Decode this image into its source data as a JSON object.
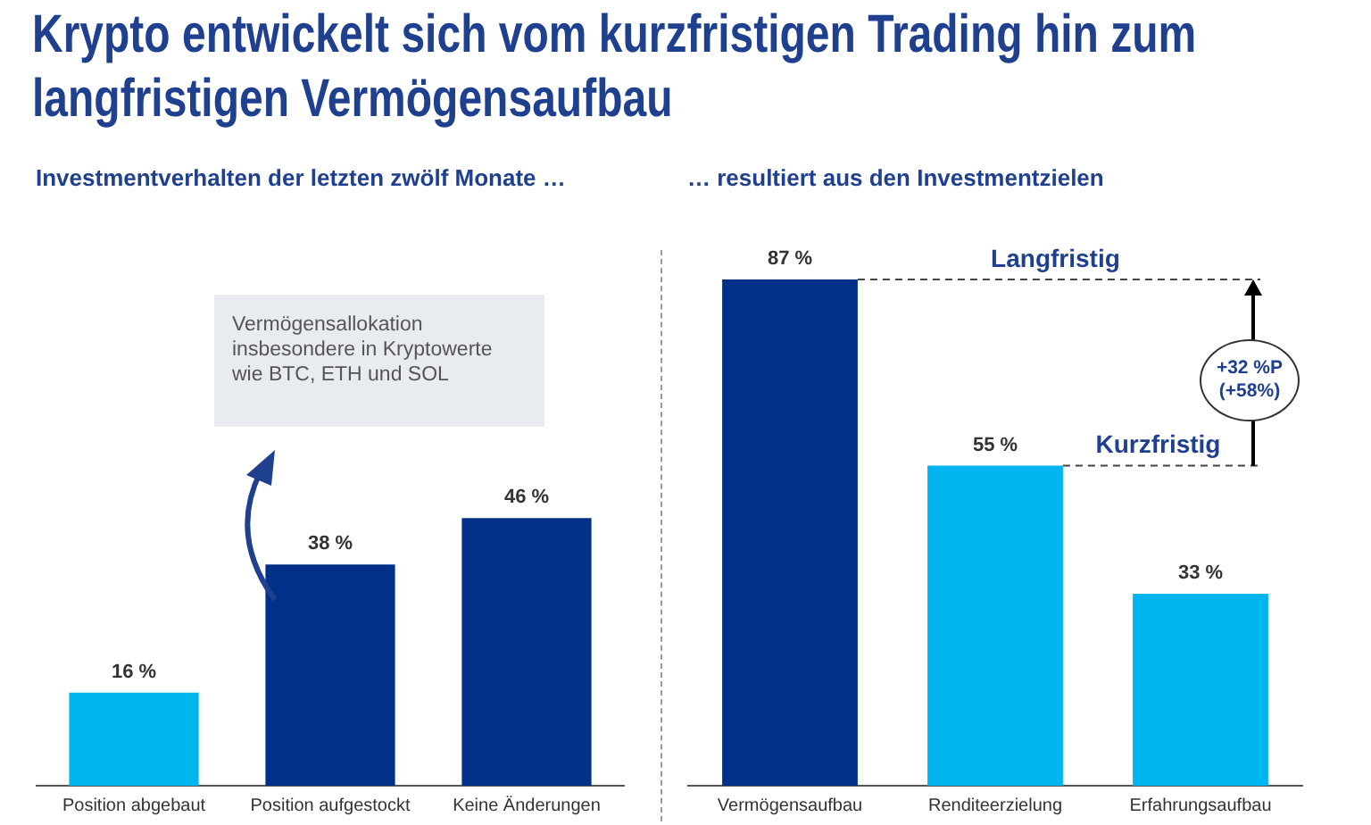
{
  "chart_data": [
    {
      "type": "bar",
      "title": "Krypto entwickelt sich vom kurzfristigen Trading hin zum langfristigen Vermögensaufbau",
      "subtitle": "Investmentverhalten der letzten zwölf Monate …",
      "categories": [
        "Position abgebaut",
        "Position aufgestockt",
        "Keine Änderungen"
      ],
      "values": [
        16,
        38,
        46
      ],
      "colors": [
        "#00b4f0",
        "#003087",
        "#003087"
      ],
      "value_labels": [
        "16 %",
        "38 %",
        "46 %"
      ],
      "tick_labels": "x",
      "grid": false,
      "legend": false,
      "annotations": [
        "Vermögensallokation insbesondere in Kryptowerte wie BTC, ETH und SOL"
      ]
    },
    {
      "type": "bar",
      "subtitle": "… resultiert aus den Investmentzielen",
      "categories": [
        "Vermögensaufbau",
        "Renditeerzielung",
        "Erfahrungsaufbau"
      ],
      "values": [
        87,
        55,
        33
      ],
      "colors": [
        "#003087",
        "#00b4f0",
        "#00b4f0"
      ],
      "value_labels": [
        "87 %",
        "55 %",
        "33 %"
      ],
      "tick_labels": "x",
      "grid": false,
      "legend": false,
      "ref_lines": [
        {
          "axis": "y",
          "value": 87,
          "label": "Langfristig",
          "color": "#444444",
          "line_style": "dashed"
        },
        {
          "axis": "y",
          "value": 55,
          "label": "Kurzfristig",
          "color": "#444444",
          "line_style": "dashed"
        }
      ],
      "annotations": [
        "+32 %P (+58%)"
      ]
    }
  ]
}
